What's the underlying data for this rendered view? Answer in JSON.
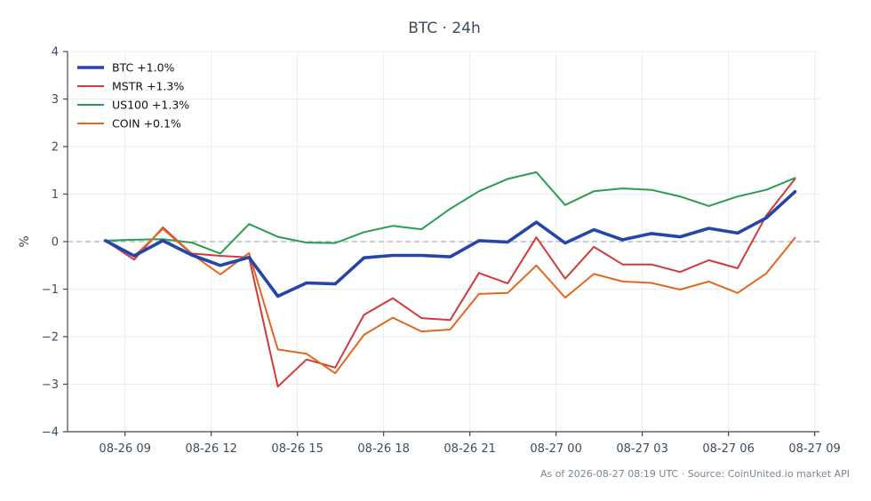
{
  "chart_data": {
    "type": "line",
    "title": "BTC · 24h",
    "xlabel": "",
    "ylabel": "%",
    "ylim": [
      -4,
      4
    ],
    "yticks": [
      4,
      3,
      2,
      1,
      0,
      -1,
      -2,
      -3,
      -4
    ],
    "ytick_labels": [
      "4",
      "3",
      "2",
      "1",
      "0",
      "−1",
      "−2",
      "−3",
      "−4"
    ],
    "xlim": [
      "2026-08-26 07:00",
      "2026-08-27 09:10"
    ],
    "xticks": [
      "2026-08-26 09:00",
      "2026-08-26 12:00",
      "2026-08-26 15:00",
      "2026-08-26 18:00",
      "2026-08-26 21:00",
      "2026-08-27 00:00",
      "2026-08-27 03:00",
      "2026-08-27 06:00",
      "2026-08-27 09:00"
    ],
    "xtick_labels": [
      "08-26 09",
      "08-26 12",
      "08-26 15",
      "08-26 18",
      "08-26 21",
      "08-27 00",
      "08-27 03",
      "08-27 06",
      "08-27 09"
    ],
    "x": [
      "2026-08-26 08:19",
      "2026-08-26 09:19",
      "2026-08-26 10:19",
      "2026-08-26 11:19",
      "2026-08-26 12:19",
      "2026-08-26 13:19",
      "2026-08-26 14:19",
      "2026-08-26 15:19",
      "2026-08-26 16:19",
      "2026-08-26 17:19",
      "2026-08-26 18:19",
      "2026-08-26 19:19",
      "2026-08-26 20:19",
      "2026-08-26 21:19",
      "2026-08-26 22:19",
      "2026-08-26 23:19",
      "2026-08-27 00:19",
      "2026-08-27 01:19",
      "2026-08-27 02:19",
      "2026-08-27 03:19",
      "2026-08-27 04:19",
      "2026-08-27 05:19",
      "2026-08-27 06:19",
      "2026-08-27 07:19",
      "2026-08-27 08:19"
    ],
    "zero_line": true,
    "grid": true,
    "legend_position": "top-left",
    "series": [
      {
        "name": "BTC +1.0%",
        "color": "#2545a8",
        "emphasis": true,
        "values": [
          0.02,
          -0.3,
          0.02,
          -0.28,
          -0.5,
          -0.33,
          -1.15,
          -0.87,
          -0.89,
          -0.34,
          -0.29,
          -0.29,
          -0.32,
          0.02,
          -0.01,
          0.41,
          -0.03,
          0.25,
          0.04,
          0.17,
          0.1,
          0.28,
          0.18,
          0.5,
          1.05
        ]
      },
      {
        "name": "MSTR +1.3%",
        "color": "#d03a3a",
        "values": [
          0.02,
          -0.38,
          0.3,
          -0.25,
          -0.3,
          -0.33,
          -3.05,
          -2.48,
          -2.65,
          -1.54,
          -1.19,
          -1.61,
          -1.65,
          -0.66,
          -0.88,
          0.09,
          -0.78,
          -0.11,
          -0.48,
          -0.48,
          -0.64,
          -0.39,
          -0.56,
          0.55,
          1.32
        ]
      },
      {
        "name": "US100 +1.3%",
        "color": "#2a9e4e",
        "values": [
          0.02,
          0.04,
          0.05,
          -0.02,
          -0.25,
          0.37,
          0.1,
          -0.02,
          -0.03,
          0.2,
          0.33,
          0.26,
          0.69,
          1.06,
          1.32,
          1.46,
          0.77,
          1.06,
          1.12,
          1.09,
          0.95,
          0.75,
          0.95,
          1.09,
          1.34
        ]
      },
      {
        "name": "COIN +0.1%",
        "color": "#e0681e",
        "values": [
          0.02,
          -0.31,
          0.27,
          -0.26,
          -0.69,
          -0.24,
          -2.27,
          -2.36,
          -2.77,
          -1.96,
          -1.6,
          -1.89,
          -1.85,
          -1.1,
          -1.08,
          -0.5,
          -1.18,
          -0.68,
          -0.84,
          -0.87,
          -1.01,
          -0.84,
          -1.08,
          -0.67,
          0.08
        ]
      }
    ]
  },
  "footer": {
    "caption": "As of 2026-08-27 08:19 UTC · Source: CoinUnited.io market API"
  }
}
